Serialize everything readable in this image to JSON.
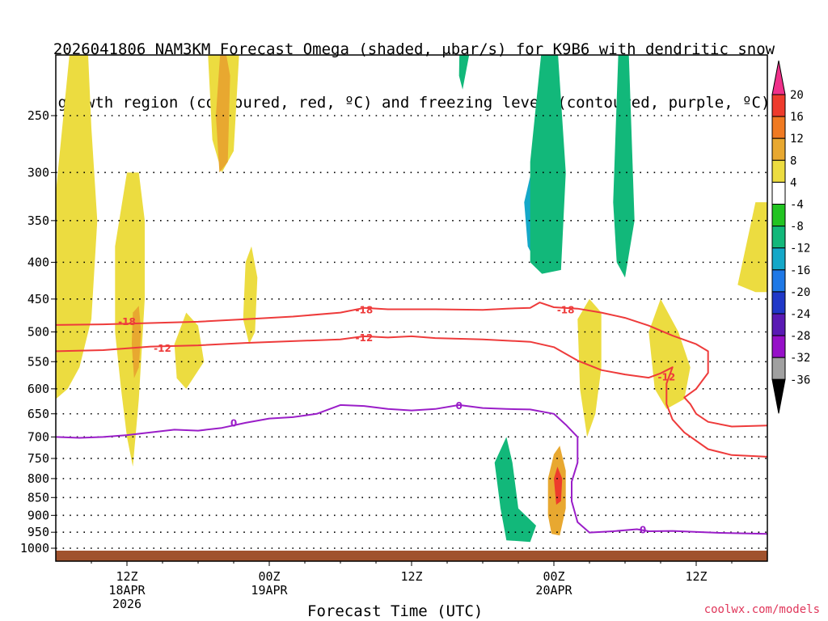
{
  "chart_data": {
    "type": "contour",
    "title_line1": "2026041806 NAM3KM Forecast Omega (shaded, μbar/s) for K9B6 with dendritic snow",
    "title_line2": "growth region (contoured, red, ºC) and freezing level (contoured, purple, ºC)",
    "xlabel": "Forecast Time (UTC)",
    "ylabel": "",
    "x_ticks": [
      {
        "hours": 6,
        "label": "12Z",
        "date": "18APR",
        "year": "2026"
      },
      {
        "hours": 18,
        "label": "00Z",
        "date": "19APR",
        "year": ""
      },
      {
        "hours": 30,
        "label": "12Z",
        "date": "",
        "year": ""
      },
      {
        "hours": 42,
        "label": "00Z",
        "date": "20APR",
        "year": ""
      },
      {
        "hours": 54,
        "label": "12Z",
        "date": "",
        "year": ""
      }
    ],
    "xlim_hours": [
      0,
      60
    ],
    "y_ticks": [
      250,
      300,
      350,
      400,
      450,
      500,
      550,
      600,
      650,
      700,
      750,
      800,
      850,
      900,
      950,
      1000
    ],
    "ylim_hPa": [
      1020,
      200
    ],
    "colorbar": {
      "labels": [
        "20",
        "16",
        "12",
        "8",
        "4",
        "-4",
        "-8",
        "-12",
        "-16",
        "-20",
        "-24",
        "-28",
        "-32",
        "-36"
      ],
      "colors": [
        "#f0308a",
        "#ee3b2c",
        "#f07a22",
        "#e8a830",
        "#ecdc40",
        "#ffffff",
        "#22c422",
        "#12b87a",
        "#14a8c8",
        "#1e78e6",
        "#2038c8",
        "#5a1ab4",
        "#9610c8",
        "#a0a0a0",
        "#000000"
      ]
    },
    "contours": [
      {
        "name": "-18",
        "color": "#ee3b3b",
        "label": "-18",
        "points": [
          [
            0,
            489
          ],
          [
            4,
            488
          ],
          [
            8,
            486
          ],
          [
            12,
            484
          ],
          [
            16,
            480
          ],
          [
            20,
            476
          ],
          [
            24,
            470
          ],
          [
            26,
            463
          ],
          [
            28,
            465
          ],
          [
            32,
            465
          ],
          [
            36,
            466
          ],
          [
            38,
            464
          ],
          [
            40,
            463
          ],
          [
            40.8,
            455
          ],
          [
            42,
            462
          ],
          [
            44,
            464
          ],
          [
            46,
            470
          ],
          [
            48,
            478
          ],
          [
            50,
            490
          ],
          [
            52,
            506
          ],
          [
            54,
            520
          ],
          [
            55,
            532
          ],
          [
            55,
            570
          ],
          [
            54,
            600
          ],
          [
            53,
            617
          ],
          [
            53.5,
            630
          ],
          [
            54,
            650
          ],
          [
            55,
            667
          ],
          [
            57,
            677
          ],
          [
            60,
            675
          ]
        ],
        "labels_at": [
          [
            6,
            484
          ],
          [
            26,
            466
          ],
          [
            43,
            466
          ]
        ]
      },
      {
        "name": "-12",
        "color": "#ee3b3b",
        "label": "-12",
        "points": [
          [
            0,
            532
          ],
          [
            4,
            530
          ],
          [
            8,
            524
          ],
          [
            12,
            522
          ],
          [
            16,
            518
          ],
          [
            20,
            515
          ],
          [
            24,
            512
          ],
          [
            26,
            507
          ],
          [
            28,
            509
          ],
          [
            30,
            507
          ],
          [
            32,
            510
          ],
          [
            36,
            512
          ],
          [
            40,
            516
          ],
          [
            42,
            525
          ],
          [
            44,
            548
          ],
          [
            46,
            565
          ],
          [
            48,
            573
          ],
          [
            50,
            579
          ],
          [
            51,
            571
          ],
          [
            52,
            560
          ],
          [
            51.5,
            590
          ],
          [
            51.5,
            630
          ],
          [
            52,
            662
          ],
          [
            53,
            690
          ],
          [
            55,
            728
          ],
          [
            57,
            742
          ],
          [
            60,
            746
          ]
        ],
        "labels_at": [
          [
            9,
            527
          ],
          [
            26,
            510
          ],
          [
            51.5,
            578
          ]
        ]
      },
      {
        "name": "0",
        "color": "#9a1ec8",
        "label": "0",
        "points": [
          [
            0,
            700
          ],
          [
            2,
            702
          ],
          [
            4,
            700
          ],
          [
            6,
            696
          ],
          [
            8,
            690
          ],
          [
            10,
            684
          ],
          [
            12,
            686
          ],
          [
            14,
            680
          ],
          [
            16,
            669
          ],
          [
            18,
            660
          ],
          [
            20,
            657
          ],
          [
            22,
            650
          ],
          [
            24,
            632
          ],
          [
            26,
            634
          ],
          [
            28,
            640
          ],
          [
            30,
            643
          ],
          [
            32,
            640
          ],
          [
            34,
            632
          ],
          [
            36,
            638
          ],
          [
            38,
            640
          ],
          [
            40,
            641
          ],
          [
            42,
            650
          ],
          [
            43,
            673
          ],
          [
            44,
            700
          ],
          [
            44,
            760
          ],
          [
            43.5,
            808
          ],
          [
            43.5,
            860
          ],
          [
            44,
            920
          ],
          [
            45,
            951
          ],
          [
            47,
            947
          ],
          [
            49,
            941
          ],
          [
            50,
            947
          ],
          [
            52,
            946
          ],
          [
            56,
            952
          ],
          [
            60,
            955
          ]
        ],
        "labels_at": [
          [
            15,
            670
          ],
          [
            34,
            634
          ],
          [
            49.5,
            943
          ]
        ]
      }
    ],
    "shaded_regions": [
      {
        "name": "omega-up-4-west",
        "value": 4,
        "polygon": [
          [
            0,
            320
          ],
          [
            1.5,
            180
          ],
          [
            2,
            110
          ],
          [
            3,
            260
          ],
          [
            3.5,
            350
          ],
          [
            3,
            480
          ],
          [
            2,
            560
          ],
          [
            1,
            600
          ],
          [
            0,
            620
          ]
        ]
      },
      {
        "name": "omega-up-4-6z",
        "value": 4,
        "polygon": [
          [
            5,
            380
          ],
          [
            6,
            300
          ],
          [
            7,
            300
          ],
          [
            7.5,
            350
          ],
          [
            7.5,
            450
          ],
          [
            7,
            620
          ],
          [
            6.5,
            770
          ],
          [
            6,
            700
          ],
          [
            5.5,
            600
          ],
          [
            5,
            500
          ]
        ]
      },
      {
        "name": "omega-up-8-6z",
        "value": 8,
        "polygon": [
          [
            6.5,
            470
          ],
          [
            7,
            460
          ],
          [
            7.2,
            500
          ],
          [
            7,
            560
          ],
          [
            6.6,
            580
          ],
          [
            6.4,
            520
          ]
        ]
      },
      {
        "name": "omega-up-4-14z",
        "value": 4,
        "polygon": [
          [
            12.8,
            200
          ],
          [
            13.5,
            130
          ],
          [
            14.8,
            150
          ],
          [
            15.5,
            200
          ],
          [
            15,
            280
          ],
          [
            14,
            300
          ],
          [
            13.2,
            270
          ]
        ]
      },
      {
        "name": "omega-up-8-14z",
        "value": 8,
        "polygon": [
          [
            13.5,
            250
          ],
          [
            14,
            190
          ],
          [
            14.7,
            220
          ],
          [
            14.5,
            290
          ],
          [
            13.8,
            300
          ]
        ]
      },
      {
        "name": "omega-up-4-early",
        "value": 4,
        "polygon": [
          [
            10,
            520
          ],
          [
            11,
            470
          ],
          [
            12,
            490
          ],
          [
            12.5,
            550
          ],
          [
            11,
            600
          ],
          [
            10.2,
            580
          ]
        ]
      },
      {
        "name": "omega-up-4-16z",
        "value": 4,
        "polygon": [
          [
            16,
            400
          ],
          [
            16.5,
            380
          ],
          [
            17,
            420
          ],
          [
            16.8,
            500
          ],
          [
            16.3,
            520
          ],
          [
            15.8,
            480
          ]
        ]
      },
      {
        "name": "omega-down-8-32z",
        "value": -8,
        "polygon": [
          [
            34,
            220
          ],
          [
            34.5,
            70
          ],
          [
            35.5,
            70
          ],
          [
            35.5,
            150
          ],
          [
            35,
            200
          ],
          [
            34.3,
            230
          ]
        ]
      },
      {
        "name": "omega-down-12-40z",
        "value": -12,
        "polygon": [
          [
            39.5,
            330
          ],
          [
            40.5,
            280
          ],
          [
            41.5,
            270
          ],
          [
            42.5,
            330
          ],
          [
            42.3,
            390
          ],
          [
            41.5,
            410
          ],
          [
            40.5,
            400
          ],
          [
            39.8,
            380
          ]
        ]
      },
      {
        "name": "omega-down-20-40z",
        "value": -20,
        "polygon": [
          [
            40.5,
            340
          ],
          [
            41,
            310
          ],
          [
            41.6,
            330
          ],
          [
            41.4,
            380
          ],
          [
            40.8,
            385
          ]
        ]
      },
      {
        "name": "omega-down-8-38z",
        "value": -8,
        "polygon": [
          [
            40,
            290
          ],
          [
            41,
            200
          ],
          [
            41.5,
            130
          ],
          [
            42.3,
            200
          ],
          [
            43,
            300
          ],
          [
            42.6,
            410
          ],
          [
            41,
            415
          ],
          [
            40,
            400
          ]
        ]
      },
      {
        "name": "omega-down-8-40z-low",
        "value": -8,
        "polygon": [
          [
            37.5,
            880
          ],
          [
            37,
            760
          ],
          [
            38,
            700
          ],
          [
            38.5,
            760
          ],
          [
            39,
            880
          ],
          [
            40.5,
            930
          ],
          [
            40,
            980
          ],
          [
            38,
            975
          ]
        ]
      },
      {
        "name": "omega-up-8-42z",
        "value": 8,
        "polygon": [
          [
            41.5,
            800
          ],
          [
            42,
            740
          ],
          [
            42.5,
            720
          ],
          [
            43,
            780
          ],
          [
            43,
            880
          ],
          [
            42.5,
            960
          ],
          [
            41.8,
            955
          ],
          [
            41.5,
            900
          ]
        ]
      },
      {
        "name": "omega-up-16-42z",
        "value": 16,
        "polygon": [
          [
            42,
            800
          ],
          [
            42.3,
            770
          ],
          [
            42.7,
            800
          ],
          [
            42.6,
            860
          ],
          [
            42.2,
            870
          ]
        ]
      },
      {
        "name": "omega-up-4-44z",
        "value": 4,
        "polygon": [
          [
            44,
            480
          ],
          [
            45,
            450
          ],
          [
            46,
            470
          ],
          [
            46,
            560
          ],
          [
            45.5,
            650
          ],
          [
            44.8,
            700
          ],
          [
            44.2,
            600
          ]
        ]
      },
      {
        "name": "omega-down-8-47z",
        "value": -8,
        "polygon": [
          [
            47,
            330
          ],
          [
            47.5,
            190
          ],
          [
            48,
            145
          ],
          [
            48.5,
            250
          ],
          [
            48.8,
            350
          ],
          [
            48,
            420
          ],
          [
            47.3,
            400
          ]
        ]
      },
      {
        "name": "omega-up-4-52z",
        "value": 4,
        "polygon": [
          [
            50,
            500
          ],
          [
            51,
            450
          ],
          [
            52.5,
            500
          ],
          [
            53.5,
            560
          ],
          [
            53,
            620
          ],
          [
            51.5,
            640
          ],
          [
            50.5,
            600
          ]
        ]
      },
      {
        "name": "omega-up-4-east",
        "value": 4,
        "polygon": [
          [
            57.5,
            430
          ],
          [
            59,
            330
          ],
          [
            60,
            330
          ],
          [
            60,
            440
          ],
          [
            59,
            440
          ]
        ]
      }
    ]
  },
  "credit": "coolwx.com/models"
}
